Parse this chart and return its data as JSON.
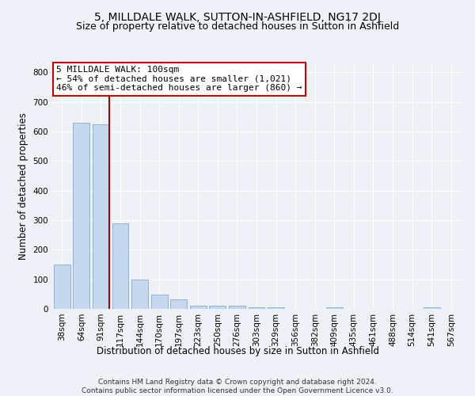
{
  "title": "5, MILLDALE WALK, SUTTON-IN-ASHFIELD, NG17 2DJ",
  "subtitle": "Size of property relative to detached houses in Sutton in Ashfield",
  "xlabel": "Distribution of detached houses by size in Sutton in Ashfield",
  "ylabel": "Number of detached properties",
  "categories": [
    "38sqm",
    "64sqm",
    "91sqm",
    "117sqm",
    "144sqm",
    "170sqm",
    "197sqm",
    "223sqm",
    "250sqm",
    "276sqm",
    "303sqm",
    "329sqm",
    "356sqm",
    "382sqm",
    "409sqm",
    "435sqm",
    "461sqm",
    "488sqm",
    "514sqm",
    "541sqm",
    "567sqm"
  ],
  "values": [
    150,
    630,
    625,
    290,
    100,
    47,
    32,
    11,
    10,
    10,
    6,
    5,
    0,
    0,
    5,
    0,
    0,
    0,
    0,
    5,
    0
  ],
  "bar_color": "#c5d8ed",
  "bar_edge_color": "#7aadd4",
  "vline_x": 2.43,
  "vline_color": "#aa0000",
  "annotation_text": "5 MILLDALE WALK: 100sqm\n← 54% of detached houses are smaller (1,021)\n46% of semi-detached houses are larger (860) →",
  "annotation_box_color": "#ffffff",
  "annotation_box_edge": "#cc0000",
  "ylim": [
    0,
    830
  ],
  "yticks": [
    0,
    100,
    200,
    300,
    400,
    500,
    600,
    700,
    800
  ],
  "footer_text": "Contains HM Land Registry data © Crown copyright and database right 2024.\nContains public sector information licensed under the Open Government Licence v3.0.",
  "background_color": "#eef2f7",
  "plot_bg_color": "#eef2f7",
  "title_fontsize": 10,
  "subtitle_fontsize": 9,
  "axis_label_fontsize": 8.5,
  "tick_fontsize": 7.5,
  "annotation_fontsize": 8,
  "footer_fontsize": 6.5,
  "grid_color": "#ffffff"
}
